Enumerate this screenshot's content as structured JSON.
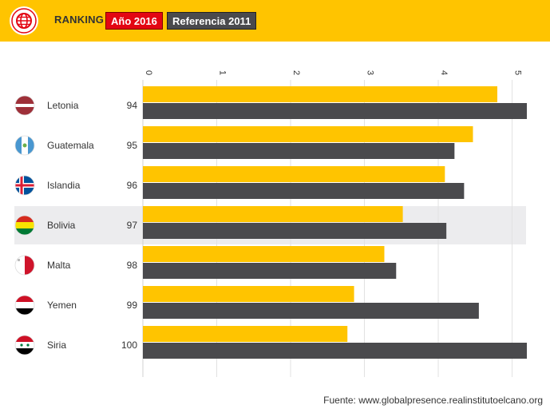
{
  "header": {
    "ranking_label": "RANKING",
    "chip_2016": "Año 2016",
    "chip_2011": "Referencia 2011",
    "colors": {
      "bar": "#ffc400",
      "chip_2016": "#e30613",
      "chip_2011": "#4a4a4d"
    },
    "logo_icon": "globe-icon"
  },
  "chart_data": {
    "type": "bar",
    "orientation": "horizontal",
    "x_ticks": [
      "0",
      "1",
      "2",
      "3",
      "4",
      "5"
    ],
    "xlim": [
      0,
      5.2
    ],
    "grid": true,
    "highlight_row": "Bolivia",
    "rows": [
      {
        "country": "Letonia",
        "rank": "94",
        "flag": "latvia-flag",
        "v2016": 4.8,
        "v2011": 5.2
      },
      {
        "country": "Guatemala",
        "rank": "95",
        "flag": "guatemala-flag",
        "v2016": 4.47,
        "v2011": 4.22
      },
      {
        "country": "Islandia",
        "rank": "96",
        "flag": "iceland-flag",
        "v2016": 4.09,
        "v2011": 4.35
      },
      {
        "country": "Bolivia",
        "rank": "97",
        "flag": "bolivia-flag",
        "v2016": 3.52,
        "v2011": 4.11
      },
      {
        "country": "Malta",
        "rank": "98",
        "flag": "malta-flag",
        "v2016": 3.27,
        "v2011": 3.43
      },
      {
        "country": "Yemen",
        "rank": "99",
        "flag": "yemen-flag",
        "v2016": 2.86,
        "v2011": 4.55
      },
      {
        "country": "Siria",
        "rank": "100",
        "flag": "syria-flag",
        "v2016": 2.77,
        "v2011": 5.2
      }
    ],
    "series": [
      {
        "key": "v2016",
        "color": "#ffc400"
      },
      {
        "key": "v2011",
        "color": "#4a4a4d"
      }
    ]
  },
  "footer": {
    "source": "Fuente: www.globalpresence.realinstitutoelcano.org"
  }
}
